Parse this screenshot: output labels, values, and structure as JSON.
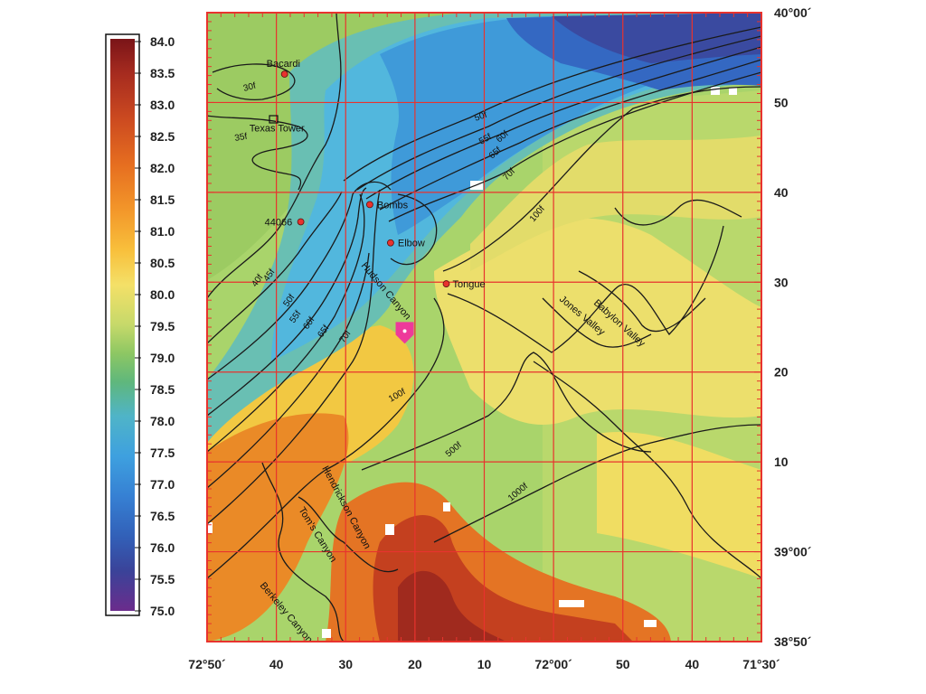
{
  "legend": {
    "values": [
      "84.0",
      "83.5",
      "83.0",
      "82.5",
      "82.0",
      "81.5",
      "81.0",
      "80.5",
      "80.0",
      "79.5",
      "79.0",
      "78.5",
      "78.0",
      "77.5",
      "77.0",
      "76.5",
      "76.0",
      "75.5",
      "75.0"
    ],
    "colors": [
      "#7a1418",
      "#9e2a20",
      "#c2411f",
      "#da5d1f",
      "#ea7c21",
      "#f5a22c",
      "#f8c53e",
      "#f3e065",
      "#c8d96a",
      "#8fc862",
      "#62b874",
      "#50b4c4",
      "#43a6df",
      "#3a8fd8",
      "#3573c6",
      "#3258b0",
      "#36459c",
      "#4a3690",
      "#6b2c8c"
    ]
  },
  "axes": {
    "lon_labels": [
      "72°50´",
      "40",
      "30",
      "20",
      "10",
      "72°00´",
      "50",
      "40",
      "71°30´"
    ],
    "lat_labels": [
      "40°00´",
      "50",
      "40",
      "30",
      "20",
      "10",
      "39°00´",
      "38°50´"
    ]
  },
  "places": [
    {
      "name": "Bacardi",
      "lon": -72.647,
      "lat": 39.886
    },
    {
      "name": "Texas Tower",
      "lon": -72.675,
      "lat": 39.803
    },
    {
      "name": "44066",
      "lon": -72.608,
      "lat": 39.612
    },
    {
      "name": "Bombs",
      "lon": -72.442,
      "lat": 39.644
    },
    {
      "name": "Elbow",
      "lon": -72.392,
      "lat": 39.573
    },
    {
      "name": "Tongue",
      "lon": -72.258,
      "lat": 39.497
    }
  ],
  "canyons": [
    "Hudson Canyon",
    "Hendrickson Canyon",
    "Tom's Canyon",
    "Berkeley Canyon",
    "Jones Valley",
    "Babylon Valley"
  ],
  "contour_labels": [
    "30f",
    "35f",
    "40f",
    "45f",
    "50f",
    "55f",
    "60f",
    "65f",
    "70f",
    "100f",
    "50f",
    "55f",
    "60f",
    "65f",
    "70f",
    "100f",
    "100f",
    "500f",
    "1000f"
  ],
  "marker": {
    "name": "position-marker",
    "lon": -72.358,
    "lat": 39.406,
    "color": "#ee3a9a"
  },
  "colors": {
    "grid": "#e8332e",
    "frame": "#e8332e",
    "contour": "#1a1a1a"
  }
}
